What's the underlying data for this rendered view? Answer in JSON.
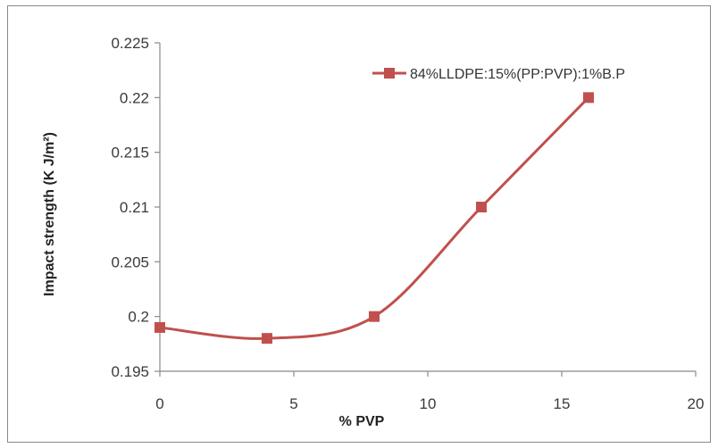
{
  "chart_data": {
    "type": "line",
    "xlabel": "% PVP",
    "ylabel": "Impact strength (K J/m²)",
    "xlim": [
      0,
      20
    ],
    "ylim": [
      0.195,
      0.225
    ],
    "xticks": [
      "0",
      "5",
      "10",
      "15",
      "20"
    ],
    "yticks": [
      "0.195",
      "0.2",
      "0.205",
      "0.21",
      "0.215",
      "0.22",
      "0.225"
    ],
    "grid": false,
    "legend_position": "top-right",
    "series": [
      {
        "name": "84%LLDPE:15%(PP:PVP):1%B.P",
        "color": "#c0504d",
        "marker": "square",
        "smooth": true,
        "x": [
          0,
          4,
          8,
          12,
          16
        ],
        "y": [
          0.199,
          0.198,
          0.2,
          0.21,
          0.22
        ]
      }
    ]
  }
}
